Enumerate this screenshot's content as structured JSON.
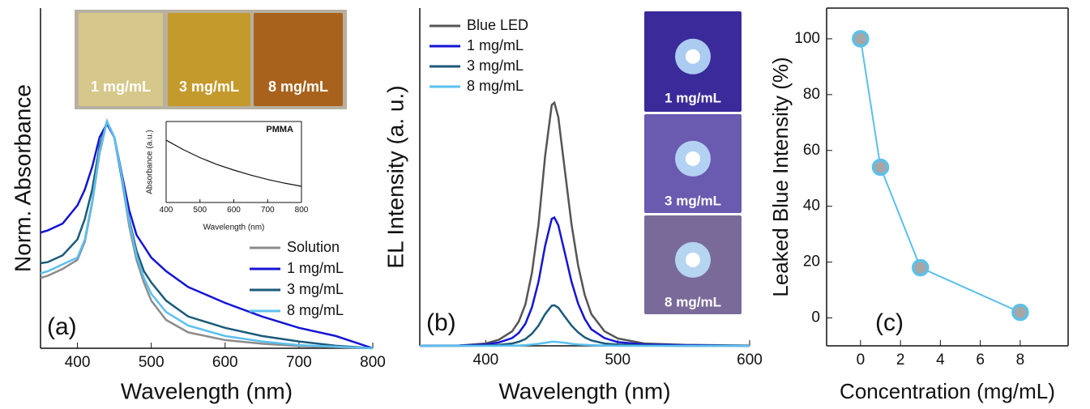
{
  "chart_data": [
    {
      "type": "line",
      "panel_label": "(a)",
      "x_label": "Wavelength (nm)",
      "y_label": "Norm. Absorbance",
      "xlim": [
        350,
        800
      ],
      "ylim": [
        0,
        1.5
      ],
      "xticks": [
        400,
        500,
        600,
        700,
        800
      ],
      "legend": "lower right",
      "photo_labels": [
        "1 mg/mL",
        "3 mg/mL",
        "8 mg/mL"
      ],
      "x": [
        350,
        360,
        380,
        400,
        410,
        420,
        430,
        440,
        450,
        460,
        470,
        480,
        490,
        500,
        520,
        550,
        600,
        650,
        700,
        750,
        800
      ],
      "series": [
        {
          "name": "Solution",
          "color": "#8c8c8c",
          "values": [
            0.31,
            0.32,
            0.35,
            0.39,
            0.47,
            0.64,
            0.86,
            1.0,
            0.93,
            0.75,
            0.54,
            0.39,
            0.29,
            0.21,
            0.125,
            0.07,
            0.036,
            0.02,
            0.01,
            0.005,
            0
          ]
        },
        {
          "name": "1 mg/mL",
          "color": "#1414d4",
          "values": [
            0.51,
            0.52,
            0.55,
            0.63,
            0.7,
            0.8,
            0.93,
            0.99,
            0.93,
            0.77,
            0.61,
            0.5,
            0.45,
            0.4,
            0.34,
            0.27,
            0.2,
            0.14,
            0.09,
            0.054,
            0
          ]
        },
        {
          "name": "3 mg/mL",
          "color": "#1b5a7a",
          "values": [
            0.375,
            0.38,
            0.41,
            0.48,
            0.57,
            0.7,
            0.89,
            1.0,
            0.93,
            0.75,
            0.57,
            0.43,
            0.34,
            0.29,
            0.21,
            0.14,
            0.09,
            0.054,
            0.03,
            0.011,
            0
          ]
        },
        {
          "name": "8 mg/mL",
          "color": "#5bc0f0",
          "values": [
            0.33,
            0.34,
            0.37,
            0.4,
            0.48,
            0.65,
            0.87,
            1.0,
            0.93,
            0.76,
            0.56,
            0.41,
            0.31,
            0.24,
            0.16,
            0.1,
            0.054,
            0.03,
            0.014,
            0.007,
            0
          ]
        }
      ]
    },
    {
      "type": "line",
      "title": "PMMA",
      "x_label": "Wavelength (nm)",
      "y_label": "Absorbance (a.u.)",
      "xlim": [
        400,
        800
      ],
      "ylim": [
        0,
        1.3
      ],
      "xticks": [
        400,
        500,
        600,
        700,
        800
      ],
      "x": [
        400,
        450,
        500,
        550,
        600,
        650,
        700,
        750,
        800
      ],
      "series": [
        {
          "color": "#111111",
          "values": [
            1.0,
            0.85,
            0.72,
            0.61,
            0.52,
            0.44,
            0.37,
            0.31,
            0.26
          ]
        }
      ]
    },
    {
      "type": "line",
      "panel_label": "(b)",
      "x_label": "Wavelength (nm)",
      "y_label": "EL Intensity (a. u.)",
      "xlim": [
        350,
        600
      ],
      "ylim": [
        0,
        1
      ],
      "xticks": [
        400,
        500,
        600
      ],
      "legend": "upper left",
      "photo_labels": [
        "1 mg/mL",
        "3 mg/mL",
        "8 mg/mL"
      ],
      "x": [
        350,
        380,
        400,
        410,
        420,
        425,
        430,
        435,
        440,
        445,
        450,
        452,
        455,
        460,
        465,
        470,
        475,
        480,
        490,
        500,
        520,
        550,
        600
      ],
      "series": [
        {
          "name": "Blue LED",
          "color": "#555555",
          "values": [
            0,
            0.001,
            0.007,
            0.018,
            0.043,
            0.072,
            0.122,
            0.216,
            0.36,
            0.562,
            0.713,
            0.72,
            0.677,
            0.518,
            0.36,
            0.238,
            0.151,
            0.094,
            0.043,
            0.022,
            0.007,
            0.003,
            0.001
          ]
        },
        {
          "name": "1 mg/mL",
          "color": "#1414d4",
          "values": [
            0,
            0.001,
            0.004,
            0.01,
            0.023,
            0.038,
            0.065,
            0.114,
            0.19,
            0.296,
            0.376,
            0.38,
            0.357,
            0.274,
            0.19,
            0.125,
            0.08,
            0.049,
            0.023,
            0.011,
            0.004,
            0.002,
            0
          ]
        },
        {
          "name": "3 mg/mL",
          "color": "#1b5a7a",
          "values": [
            0,
            0,
            0.001,
            0.003,
            0.007,
            0.012,
            0.02,
            0.036,
            0.06,
            0.094,
            0.119,
            0.12,
            0.113,
            0.086,
            0.06,
            0.04,
            0.025,
            0.016,
            0.007,
            0.004,
            0.001,
            0,
            0
          ]
        },
        {
          "name": "8 mg/mL",
          "color": "#5bc0f0",
          "values": [
            0,
            0,
            0,
            0,
            0.001,
            0.001,
            0.002,
            0.004,
            0.006,
            0.009,
            0.012,
            0.012,
            0.011,
            0.009,
            0.006,
            0.004,
            0.003,
            0.002,
            0.001,
            0,
            0,
            0,
            0
          ]
        }
      ]
    },
    {
      "type": "line",
      "markers": true,
      "panel_label": "(c)",
      "x_label": "Concentration (mg/mL)",
      "y_label": "Leaked Blue Intensity (%)",
      "xlim": [
        -1.7,
        10.4
      ],
      "ylim": [
        -10,
        111
      ],
      "xticks": [
        0,
        2,
        4,
        6,
        8
      ],
      "yticks": [
        0,
        20,
        40,
        60,
        80,
        100
      ],
      "frame": true,
      "x": [
        0,
        1,
        3,
        8
      ],
      "series": [
        {
          "color": "#5bc0eb",
          "marker_fill": "#a6a6a6",
          "values": [
            100,
            54,
            18,
            2
          ]
        }
      ]
    }
  ]
}
